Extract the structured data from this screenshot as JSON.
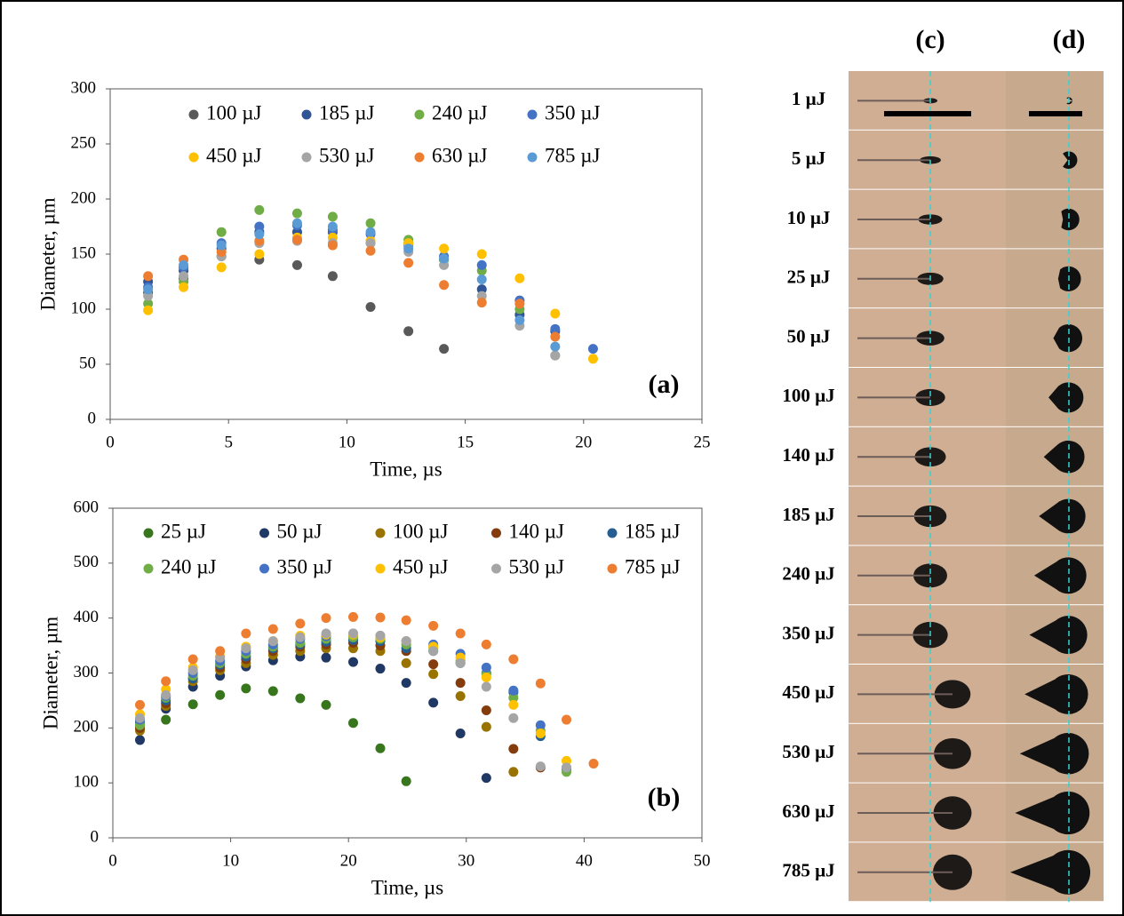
{
  "chart_data": [
    {
      "type": "scatter",
      "panel_label": "(a)",
      "x_label": "Time, µs",
      "y_label": "Diameter, µm",
      "x": [
        1.6,
        3.1,
        4.7,
        6.3,
        7.9,
        9.4,
        11.0,
        12.6,
        14.1,
        15.7,
        17.3,
        18.8,
        20.4
      ],
      "xlim": [
        0,
        25
      ],
      "xticks": [
        0,
        5,
        10,
        15,
        20,
        25
      ],
      "ylim": [
        0,
        300
      ],
      "yticks": [
        0,
        50,
        100,
        150,
        200,
        250,
        300
      ],
      "series": [
        {
          "name": "100 µJ",
          "color": "#595959",
          "values": [
            115,
            128,
            148,
            145,
            140,
            130,
            102,
            80,
            64,
            null,
            null,
            null,
            null
          ]
        },
        {
          "name": "185 µJ",
          "color": "#2f5597",
          "values": [
            125,
            135,
            155,
            170,
            170,
            170,
            160,
            160,
            145,
            118,
            95,
            80,
            null
          ]
        },
        {
          "name": "240 µJ",
          "color": "#70ad47",
          "values": [
            105,
            125,
            170,
            190,
            187,
            184,
            178,
            163,
            145,
            135,
            100,
            58,
            null
          ]
        },
        {
          "name": "350 µJ",
          "color": "#4472c4",
          "values": [
            120,
            138,
            160,
            175,
            176,
            172,
            168,
            158,
            148,
            140,
            108,
            82,
            64
          ]
        },
        {
          "name": "450 µJ",
          "color": "#ffc000",
          "values": [
            99,
            120,
            138,
            150,
            165,
            165,
            162,
            160,
            155,
            150,
            128,
            96,
            55
          ]
        },
        {
          "name": "530 µJ",
          "color": "#a5a5a5",
          "values": [
            112,
            130,
            148,
            160,
            162,
            160,
            160,
            152,
            140,
            112,
            85,
            58,
            null
          ]
        },
        {
          "name": "630 µJ",
          "color": "#ed7d31",
          "values": [
            130,
            145,
            152,
            162,
            163,
            158,
            153,
            142,
            122,
            106,
            105,
            75,
            null
          ]
        },
        {
          "name": "785 µJ",
          "color": "#5b9bd5",
          "values": [
            118,
            140,
            158,
            168,
            178,
            175,
            170,
            155,
            146,
            127,
            90,
            66,
            null
          ]
        }
      ]
    },
    {
      "type": "scatter",
      "panel_label": "(b)",
      "x_label": "Time, µs",
      "y_label": "Diameter, µm",
      "x": [
        2.3,
        4.5,
        6.8,
        9.1,
        11.3,
        13.6,
        15.9,
        18.1,
        20.4,
        22.7,
        24.9,
        27.2,
        29.5,
        31.7,
        34.0,
        36.3,
        38.5,
        40.8
      ],
      "xlim": [
        0,
        50
      ],
      "xticks": [
        0,
        10,
        20,
        30,
        40,
        50
      ],
      "ylim": [
        0,
        600
      ],
      "yticks": [
        0,
        100,
        200,
        300,
        400,
        500,
        600
      ],
      "series": [
        {
          "name": "25 µJ",
          "color": "#38761d",
          "values": [
            205,
            215,
            243,
            260,
            272,
            267,
            254,
            242,
            209,
            163,
            103,
            null,
            null,
            null,
            null,
            null,
            null,
            null
          ]
        },
        {
          "name": "50 µJ",
          "color": "#203864",
          "values": [
            178,
            235,
            275,
            295,
            312,
            323,
            330,
            328,
            320,
            308,
            282,
            246,
            190,
            109,
            null,
            null,
            null,
            null
          ]
        },
        {
          "name": "100 µJ",
          "color": "#997300",
          "values": [
            195,
            240,
            285,
            305,
            318,
            333,
            340,
            345,
            345,
            340,
            318,
            298,
            258,
            202,
            120,
            null,
            null,
            null
          ]
        },
        {
          "name": "140 µJ",
          "color": "#843c0c",
          "values": [
            200,
            245,
            290,
            310,
            325,
            340,
            348,
            352,
            355,
            350,
            340,
            316,
            282,
            232,
            162,
            128,
            null,
            null
          ]
        },
        {
          "name": "185 µJ",
          "color": "#255e91",
          "values": [
            210,
            250,
            290,
            315,
            330,
            345,
            352,
            357,
            360,
            358,
            345,
            340,
            318,
            300,
            265,
            185,
            125,
            null
          ]
        },
        {
          "name": "240 µJ",
          "color": "#70ad47",
          "values": [
            205,
            255,
            295,
            318,
            335,
            348,
            355,
            362,
            365,
            362,
            352,
            345,
            322,
            298,
            255,
            195,
            120,
            null
          ]
        },
        {
          "name": "350 µJ",
          "color": "#4472c4",
          "values": [
            215,
            258,
            300,
            322,
            340,
            352,
            362,
            367,
            372,
            368,
            358,
            352,
            335,
            310,
            268,
            205,
            128,
            null
          ]
        },
        {
          "name": "450 µJ",
          "color": "#ffc000",
          "values": [
            225,
            270,
            310,
            330,
            348,
            358,
            368,
            370,
            370,
            365,
            358,
            348,
            328,
            292,
            242,
            190,
            140,
            null
          ]
        },
        {
          "name": "530 µJ",
          "color": "#a5a5a5",
          "values": [
            218,
            260,
            305,
            328,
            345,
            358,
            365,
            372,
            372,
            368,
            358,
            340,
            318,
            275,
            218,
            130,
            128,
            null
          ]
        },
        {
          "name": "785 µJ",
          "color": "#ed7d31",
          "values": [
            242,
            285,
            325,
            340,
            372,
            380,
            390,
            400,
            402,
            401,
            396,
            386,
            372,
            352,
            325,
            281,
            215,
            135
          ]
        }
      ]
    }
  ],
  "images": {
    "columns": [
      "(c)",
      "(d)"
    ],
    "rows": [
      "1 µJ",
      "5 µJ",
      "10 µJ",
      "25 µJ",
      "50 µJ",
      "100 µJ",
      "140 µJ",
      "185 µJ",
      "240 µJ",
      "350 µJ",
      "450 µJ",
      "530 µJ",
      "630 µJ",
      "785 µJ"
    ]
  }
}
